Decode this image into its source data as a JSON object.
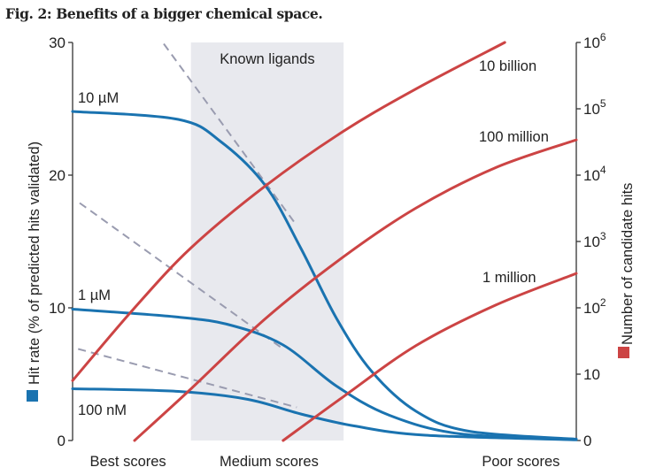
{
  "title": "Fig. 2: Benefits of a bigger chemical space.",
  "chart_data": {
    "type": "line",
    "title": "Fig. 2: Benefits of a bigger chemical space.",
    "xlabel": "",
    "x_tick_labels": [
      {
        "x": 0.11,
        "label": "Best scores"
      },
      {
        "x": 0.39,
        "label": "Medium scores"
      },
      {
        "x": 0.89,
        "label": "Poor scores"
      }
    ],
    "xlim": [
      0,
      1
    ],
    "shaded_region": {
      "label": "Known ligands",
      "x": [
        0.235,
        0.538
      ],
      "color": "#e8e9ee"
    },
    "y_left": {
      "label": "Hit rate (% of predicted hits validated)",
      "ylim": [
        0,
        30
      ],
      "ticks": [
        0,
        10,
        20,
        30
      ],
      "legend_color": "#1a73b0"
    },
    "y_right": {
      "label": "Number of candidate hits",
      "scale": "log",
      "ylim": [
        1,
        1000000
      ],
      "ticks": [
        {
          "value": 1,
          "label": "0"
        },
        {
          "value": 10,
          "label": "10"
        },
        {
          "value": 100,
          "label": "10",
          "exp": "2"
        },
        {
          "value": 1000,
          "label": "10",
          "exp": "3"
        },
        {
          "value": 10000,
          "label": "10",
          "exp": "4"
        },
        {
          "value": 100000,
          "label": "10",
          "exp": "5"
        },
        {
          "value": 1000000,
          "label": "10",
          "exp": "6"
        }
      ],
      "legend_color": "#cc4444"
    },
    "series": [
      {
        "name": "10 µM",
        "axis": "left",
        "color": "#1a73b0",
        "x": [
          0,
          0.21,
          0.295,
          0.383,
          0.453,
          0.524,
          0.594,
          0.682,
          0.787,
          1
        ],
        "y": [
          24.8,
          24.2,
          22.5,
          19.2,
          14.5,
          9.2,
          5.2,
          2.2,
          0.7,
          0.1
        ]
      },
      {
        "name": "1 µM",
        "axis": "left",
        "color": "#1a73b0",
        "x": [
          0,
          0.21,
          0.313,
          0.418,
          0.524,
          0.629,
          0.77,
          1
        ],
        "y": [
          9.9,
          9.3,
          8.7,
          7.2,
          4.1,
          1.9,
          0.5,
          0.1
        ]
      },
      {
        "name": "100 nM",
        "axis": "left",
        "color": "#1a73b0",
        "x": [
          0,
          0.21,
          0.348,
          0.453,
          0.559,
          0.7,
          1
        ],
        "y": [
          3.9,
          3.7,
          3.1,
          2.0,
          1.1,
          0.4,
          0.05
        ]
      },
      {
        "name": "10 billion",
        "axis": "right",
        "color": "#cc4444",
        "x": [
          0,
          0.12,
          0.235,
          0.383,
          0.538,
          0.682,
          0.858
        ],
        "y": [
          8,
          94,
          800,
          6900,
          46000,
          200000,
          1000000
        ]
      },
      {
        "name": "100 million",
        "axis": "right",
        "color": "#cc4444",
        "x": [
          0.123,
          0.235,
          0.383,
          0.538,
          0.682,
          0.84,
          1
        ],
        "y": [
          1,
          6,
          69,
          590,
          3200,
          13000,
          34000
        ]
      },
      {
        "name": "1 million",
        "axis": "right",
        "color": "#cc4444",
        "x": [
          0.418,
          0.538,
          0.682,
          0.84,
          1
        ],
        "y": [
          1,
          4.6,
          27,
          110,
          330
        ]
      }
    ],
    "trend_lines": [
      {
        "axis": "left",
        "style": "dashed",
        "color": "#9a9cb0",
        "x": [
          0.181,
          0.445
        ],
        "y": [
          29.9,
          16.2
        ]
      },
      {
        "axis": "left",
        "style": "dashed",
        "color": "#9a9cb0",
        "x": [
          0.014,
          0.418
        ],
        "y": [
          17.9,
          6.9
        ]
      },
      {
        "axis": "left",
        "style": "dashed",
        "color": "#9a9cb0",
        "x": [
          0.011,
          0.445
        ],
        "y": [
          6.9,
          2.5
        ]
      }
    ],
    "grid": false,
    "legend": "axis-labels"
  }
}
